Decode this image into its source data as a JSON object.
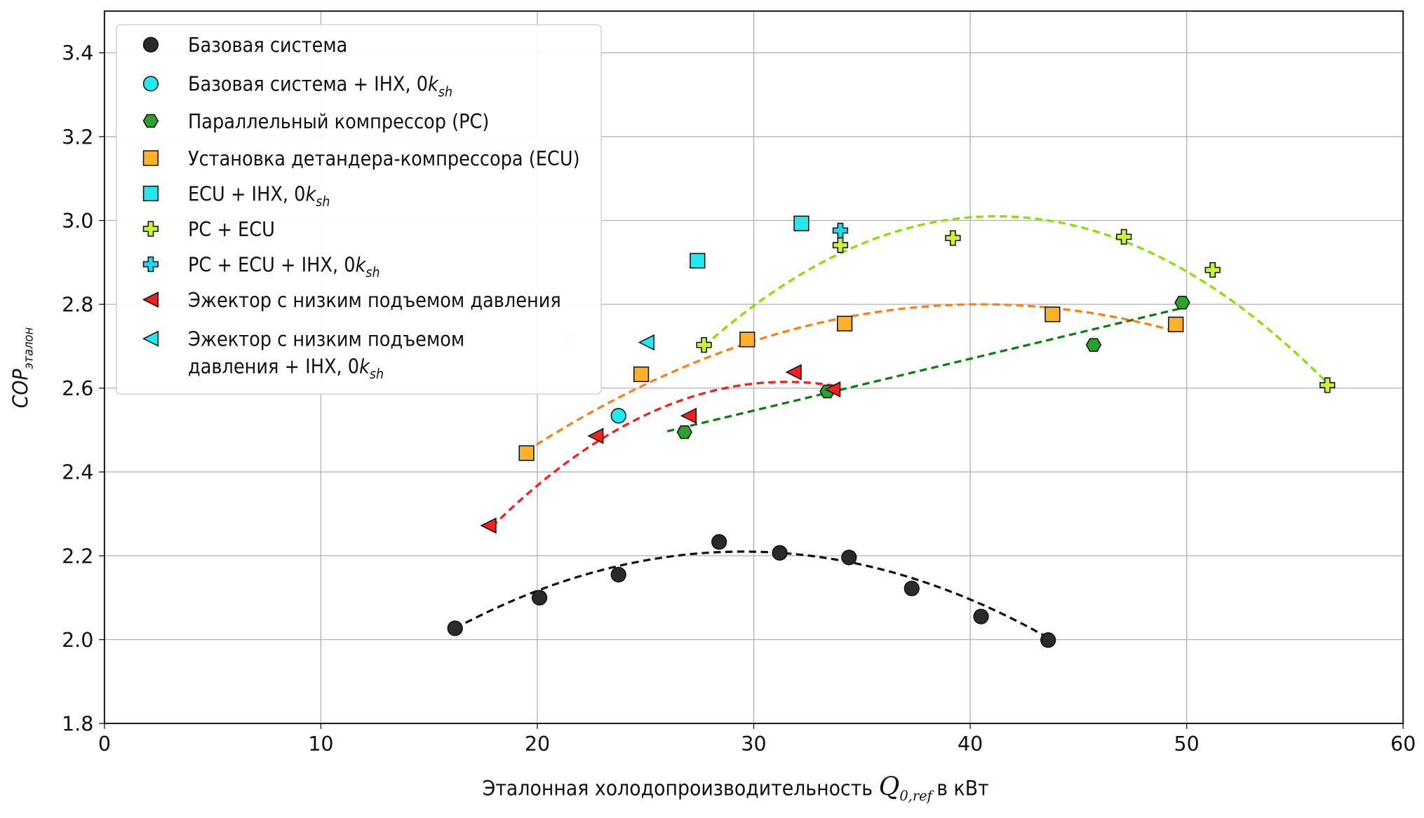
{
  "chart_data": {
    "type": "scatter",
    "xlabel": "Эталонная холодопроизводительность",
    "xlabel_symbol": "Q",
    "xlabel_symbol_sub": "0,ref",
    "xlabel_suffix": "в кВт",
    "ylabel": "COP",
    "ylabel_sub": "эталон",
    "xlim": [
      0,
      60
    ],
    "ylim": [
      1.8,
      3.5
    ],
    "xticks": [
      0,
      10,
      20,
      30,
      40,
      50,
      60
    ],
    "yticks": [
      1.8,
      2.0,
      2.2,
      2.4,
      2.6,
      2.8,
      3.0,
      3.2,
      3.4
    ],
    "grid": true,
    "legend_position": "top-left",
    "series": [
      {
        "name": "Базовая система",
        "ksh": false,
        "marker": "circle",
        "color": "#2a2a2a",
        "x": [
          16.2,
          20.1,
          23.75,
          28.4,
          31.2,
          34.4,
          37.3,
          40.5,
          43.6
        ],
        "y": [
          2.027,
          2.1,
          2.155,
          2.233,
          2.207,
          2.196,
          2.122,
          2.055,
          1.999
        ],
        "fit": {
          "type": "quadratic",
          "vertex": [
            29.5,
            2.21
          ],
          "a": 0.001035,
          "x_range": [
            16.2,
            43.8
          ],
          "color": "#111111"
        }
      },
      {
        "name": "Базовая система + IHX, 0",
        "ksh": true,
        "marker": "circle",
        "color": "#22e8ef",
        "x": [
          23.75
        ],
        "y": [
          2.534
        ]
      },
      {
        "name": "Параллельный компрессор (PC)",
        "ksh": false,
        "marker": "hexagon",
        "color": "#2ca02c",
        "x": [
          26.8,
          33.4,
          45.7,
          49.8
        ],
        "y": [
          2.495,
          2.592,
          2.703,
          2.804
        ],
        "fit": {
          "type": "linear",
          "points": [
            [
              26.0,
              2.497
            ],
            [
              49.7,
              2.79
            ]
          ],
          "color": "#0a7d0a"
        }
      },
      {
        "name": "Установка детандера-компрессора (ECU)",
        "ksh": false,
        "marker": "square",
        "color": "#ffb12a",
        "x": [
          19.5,
          24.8,
          29.7,
          34.2,
          43.8,
          49.5
        ],
        "y": [
          2.445,
          2.633,
          2.716,
          2.754,
          2.776,
          2.752
        ],
        "fit": {
          "type": "quadratic",
          "vertex": [
            40.5,
            2.8
          ],
          "a": 0.000794,
          "x_range": [
            19.5,
            49.5
          ],
          "color": "#ff7f0e"
        }
      },
      {
        "name": "ECU + IHX, 0",
        "ksh": true,
        "marker": "square",
        "color": "#22e8ef",
        "x": [
          21.6,
          27.4,
          32.2
        ],
        "y": [
          2.716,
          2.904,
          2.993
        ]
      },
      {
        "name": "PC + ECU",
        "ksh": false,
        "marker": "plus",
        "color": "#c8f53c",
        "x": [
          27.7,
          34.0,
          39.2,
          47.1,
          51.2,
          56.5
        ],
        "y": [
          2.703,
          2.941,
          2.958,
          2.961,
          2.882,
          2.607
        ],
        "fit": {
          "type": "quadratic",
          "vertex": [
            41.2,
            3.01
          ],
          "a": 0.0017,
          "x_range": [
            27.7,
            56.5
          ],
          "color": "#88e000"
        }
      },
      {
        "name": "PC + ECU + IHX, 0",
        "ksh": true,
        "marker": "plus",
        "color": "#22d8ef",
        "x": [
          34.0
        ],
        "y": [
          2.976
        ]
      },
      {
        "name": "Эжектор с низким подъемом давления",
        "ksh": false,
        "marker": "triangle-left",
        "color": "#ee2222",
        "x": [
          17.75,
          22.7,
          27.0,
          31.85,
          33.65
        ],
        "y": [
          2.272,
          2.486,
          2.534,
          2.638,
          2.597
        ],
        "fit": {
          "type": "quadratic",
          "vertex": [
            31.5,
            2.615
          ],
          "a": 0.00187,
          "x_range": [
            17.9,
            33.9
          ],
          "color": "#ff1a1a"
        }
      },
      {
        "name": "Эжектор с низким подъемом",
        "name_line2": "давления + IHX, 0",
        "ksh": true,
        "marker": "triangle-left",
        "color": "#22e8ef",
        "x": [
          25.05
        ],
        "y": [
          2.709
        ]
      }
    ]
  }
}
